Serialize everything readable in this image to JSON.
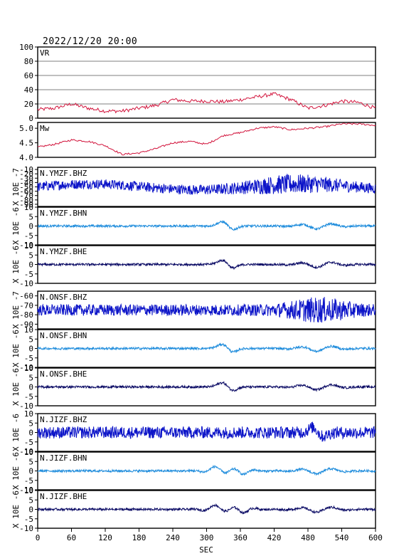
{
  "header": {
    "timestamp": "2022/12/20 20:00"
  },
  "colors": {
    "frame": "#000000",
    "vr_mw": "#d2143c",
    "bhz": "#0c14c8",
    "bhn": "#1e8cdc",
    "bhe": "#0a0a64"
  },
  "chart_data": [
    {
      "type": "line",
      "label": "VR",
      "ylim": [
        0,
        100
      ],
      "yticks": [
        "100",
        "80",
        "60",
        "40",
        "20",
        "0"
      ],
      "grid": true,
      "series": [
        {
          "color": "#d2143c",
          "x": [
            0,
            30,
            60,
            90,
            120,
            150,
            180,
            210,
            240,
            270,
            300,
            330,
            360,
            390,
            420,
            450,
            480,
            510,
            540,
            570,
            600
          ],
          "values": [
            12,
            14,
            20,
            14,
            10,
            10,
            14,
            18,
            26,
            24,
            24,
            23,
            26,
            30,
            34,
            26,
            14,
            18,
            24,
            22,
            14
          ]
        }
      ]
    },
    {
      "type": "line",
      "label": "Mw",
      "ylim": [
        4.0,
        5.2
      ],
      "yticks": [
        "5.0",
        "4.5",
        "4.0"
      ],
      "grid": false,
      "series": [
        {
          "color": "#d2143c",
          "x": [
            0,
            30,
            60,
            90,
            120,
            150,
            180,
            210,
            240,
            270,
            300,
            330,
            360,
            390,
            420,
            450,
            480,
            510,
            540,
            570,
            600
          ],
          "values": [
            4.35,
            4.45,
            4.6,
            4.55,
            4.4,
            4.1,
            4.15,
            4.3,
            4.5,
            4.55,
            4.45,
            4.75,
            4.85,
            5.0,
            5.05,
            4.95,
            5.0,
            5.05,
            5.15,
            5.15,
            5.1
          ]
        }
      ]
    },
    {
      "type": "line",
      "label": "N.YMZF.BHZ",
      "unit": "X 10E -7",
      "ylim": [
        -95,
        -5
      ],
      "yticks": [
        "-10",
        "-20",
        "-30",
        "-40",
        "-50",
        "-60",
        "-70",
        "-80",
        "-90"
      ],
      "series": [
        {
          "color": "#0c14c8"
        }
      ]
    },
    {
      "type": "line",
      "label": "N.YMZF.BHN",
      "unit": "X 10E -6",
      "ylim": [
        -10,
        10
      ],
      "yticks": [
        "10",
        "5",
        "0",
        "-5",
        "-10"
      ],
      "series": [
        {
          "color": "#1e8cdc"
        }
      ]
    },
    {
      "type": "line",
      "label": "N.YMZF.BHE",
      "unit": "X 10E -6",
      "ylim": [
        -10,
        10
      ],
      "yticks": [
        "10",
        "5",
        "0",
        "-5",
        "-10"
      ],
      "series": [
        {
          "color": "#0a0a64"
        }
      ]
    },
    {
      "type": "line",
      "label": "N.ONSF.BHZ",
      "unit": "X 10E -7",
      "ylim": [
        -95,
        -55
      ],
      "yticks": [
        "-60",
        "-70",
        "-80",
        "-90"
      ],
      "series": [
        {
          "color": "#0c14c8"
        }
      ]
    },
    {
      "type": "line",
      "label": "N.ONSF.BHN",
      "unit": "X 10E -6",
      "ylim": [
        -10,
        10
      ],
      "yticks": [
        "10",
        "5",
        "0",
        "-5",
        "-10"
      ],
      "series": [
        {
          "color": "#1e8cdc"
        }
      ]
    },
    {
      "type": "line",
      "label": "N.ONSF.BHE",
      "unit": "X 10E -6",
      "ylim": [
        -10,
        10
      ],
      "yticks": [
        "10",
        "5",
        "0",
        "-5",
        "-10"
      ],
      "series": [
        {
          "color": "#0a0a64"
        }
      ]
    },
    {
      "type": "line",
      "label": "N.JIZF.BHZ",
      "unit": "X 10E -6",
      "ylim": [
        -10,
        10
      ],
      "yticks": [
        "10",
        "5",
        "0",
        "-5",
        "-10"
      ],
      "series": [
        {
          "color": "#0c14c8"
        }
      ]
    },
    {
      "type": "line",
      "label": "N.JIZF.BHN",
      "unit": "X 10E -6",
      "ylim": [
        -10,
        10
      ],
      "yticks": [
        "10",
        "5",
        "0",
        "-5",
        "-10"
      ],
      "series": [
        {
          "color": "#1e8cdc"
        }
      ]
    },
    {
      "type": "line",
      "label": "N.JIZF.BHE",
      "unit": "X 10E -6",
      "ylim": [
        -10,
        10
      ],
      "yticks": [
        "10",
        "5",
        "0",
        "-5",
        "-10"
      ],
      "series": [
        {
          "color": "#0a0a64"
        }
      ]
    }
  ],
  "x_axis": {
    "label": "SEC",
    "range": [
      0,
      600
    ],
    "ticks": [
      "0",
      "60",
      "120",
      "180",
      "240",
      "300",
      "360",
      "420",
      "480",
      "540",
      "600"
    ]
  }
}
